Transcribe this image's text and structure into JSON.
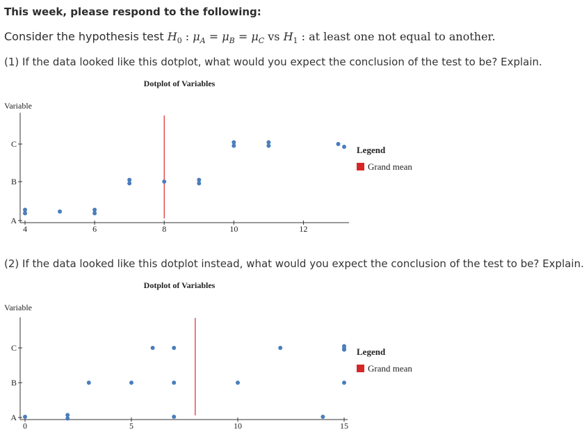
{
  "heading": "This week, please respond to the following:",
  "hypothesis": {
    "prefix": "Consider the hypothesis test",
    "h0": "H",
    "h0_sub": "0",
    "colon1": ":",
    "mu_a": "μ",
    "a_sub": "A",
    "eq1": "=",
    "mu_b": "μ",
    "b_sub": "B",
    "eq2": "=",
    "mu_c": "μ",
    "c_sub": "C",
    "vs": "vs",
    "h1": "H",
    "h1_sub": "1",
    "colon2": ":",
    "alt": "at least one not equal to another."
  },
  "question1": "(1) If the data looked like this dotplot, what would you expect the conclusion of the test to be? Explain.",
  "question2": "(2) If the data looked like this dotplot instead, what would you expect the conclusion of the test to be? Explain.",
  "colors": {
    "dot": "#4a7ebb",
    "grand_mean": "#d62728",
    "axis": "#333333"
  },
  "chart_data": [
    {
      "type": "scatter",
      "title": "Dotplot of Variables",
      "ylabel": "Variable",
      "categories": [
        "A",
        "B",
        "C"
      ],
      "xlim": [
        4,
        13.2
      ],
      "xticks": [
        4,
        6,
        8,
        10,
        12
      ],
      "grand_mean": 8,
      "legend": {
        "title": "Legend",
        "item": "Grand mean",
        "position": "right"
      },
      "series": [
        {
          "name": "A",
          "points": [
            [
              4,
              1
            ],
            [
              4,
              2
            ],
            [
              5,
              1
            ],
            [
              6,
              1
            ],
            [
              6,
              2
            ]
          ]
        },
        {
          "name": "B",
          "points": [
            [
              7,
              1
            ],
            [
              7,
              2
            ],
            [
              8,
              1
            ],
            [
              9,
              1
            ],
            [
              9,
              2
            ]
          ]
        },
        {
          "name": "C",
          "points": [
            [
              10,
              1
            ],
            [
              10,
              2
            ],
            [
              11,
              1
            ],
            [
              11,
              2
            ],
            [
              13,
              1
            ]
          ]
        }
      ]
    },
    {
      "type": "scatter",
      "title": "Dotplot of Variables",
      "ylabel": "Variable",
      "categories": [
        "A",
        "B",
        "C"
      ],
      "xlim": [
        0,
        15
      ],
      "xticks": [
        0,
        5,
        10,
        15
      ],
      "grand_mean": 8,
      "legend": {
        "title": "Legend",
        "item": "Grand mean",
        "position": "right"
      },
      "series": [
        {
          "name": "A",
          "points": [
            [
              0,
              1
            ],
            [
              2,
              1
            ],
            [
              2,
              2
            ],
            [
              7,
              1
            ],
            [
              14,
              1
            ]
          ]
        },
        {
          "name": "B",
          "points": [
            [
              3,
              1
            ],
            [
              5,
              1
            ],
            [
              7,
              1
            ],
            [
              10,
              1
            ],
            [
              15,
              1
            ]
          ]
        },
        {
          "name": "C",
          "points": [
            [
              6,
              1
            ],
            [
              7,
              1
            ],
            [
              12,
              1
            ],
            [
              15,
              1
            ],
            [
              15,
              2
            ]
          ]
        }
      ]
    }
  ]
}
